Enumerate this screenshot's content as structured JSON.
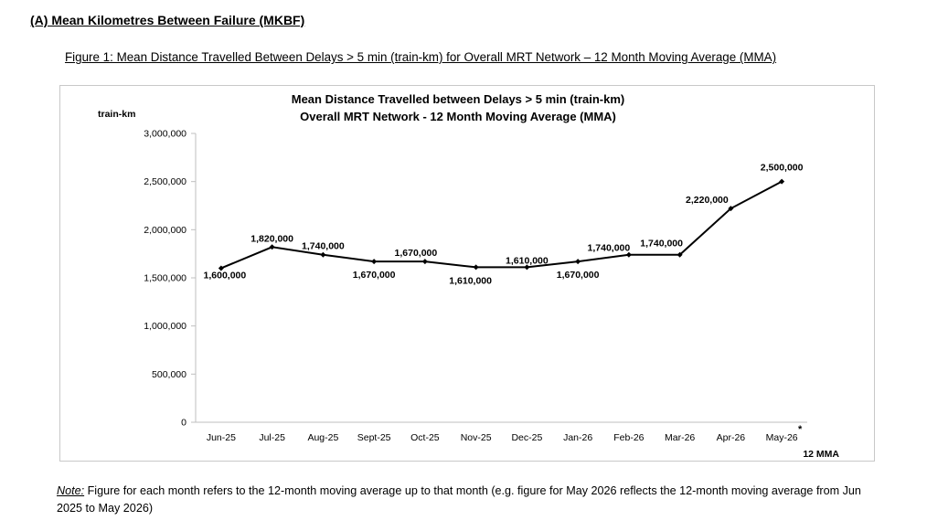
{
  "section_heading": "(A) Mean Kilometres Between Failure (MKBF)",
  "figure_caption": "Figure 1: Mean Distance Travelled Between Delays > 5 min (train-km) for Overall MRT Network – 12 Month Moving Average (MMA)",
  "note": {
    "label": "Note:",
    "text": " Figure for each month refers to the 12-month moving average up to that month (e.g. figure for May 2026 reflects the 12-month moving average from Jun 2025 to May 2026)"
  },
  "chart_data": {
    "type": "line",
    "title": "Mean Distance Travelled between Delays > 5 min (train-km)",
    "subtitle": "Overall MRT Network - 12 Month Moving Average (MMA)",
    "ylabel": "train-km",
    "xlabel": "12 MMA",
    "ylim": [
      0,
      3000000
    ],
    "y_ticks": [
      0,
      500000,
      1000000,
      1500000,
      2000000,
      2500000,
      3000000
    ],
    "y_tick_labels": [
      "0",
      "500,000",
      "1,000,000",
      "1,500,000",
      "2,000,000",
      "2,500,000",
      "3,000,000"
    ],
    "grid": false,
    "legend": "none",
    "line_color": "#000000",
    "categories": [
      "Jun-25",
      "Jul-25",
      "Aug-25",
      "Sept-25",
      "Oct-25",
      "Nov-25",
      "Dec-25",
      "Jan-26",
      "Feb-26",
      "Mar-26",
      "Apr-26",
      "May-26"
    ],
    "values": [
      1600000,
      1820000,
      1740000,
      1670000,
      1670000,
      1610000,
      1610000,
      1670000,
      1740000,
      1740000,
      2220000,
      2500000
    ],
    "data_labels": [
      "1,600,000",
      "1,820,000",
      "1,740,000",
      "1,670,000",
      "1,670,000",
      "1,610,000",
      "1,610,000",
      "1,670,000",
      "1,740,000",
      "1,740,000",
      "2,220,000",
      "2,500,000"
    ],
    "annotations": [
      {
        "category": "May-26",
        "text": "*"
      }
    ]
  }
}
